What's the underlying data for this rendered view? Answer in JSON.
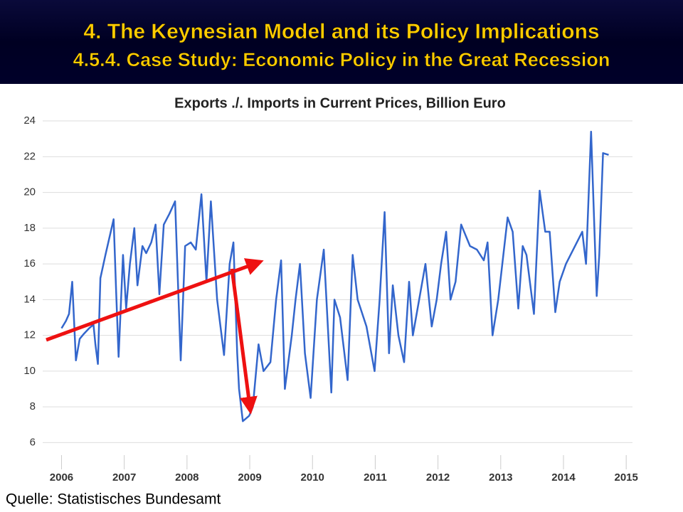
{
  "header": {
    "title": "4. The Keynesian Model and its Policy Implications",
    "subtitle": "4.5.4. Case Study: Economic Policy in the Great Recession"
  },
  "chart_data": {
    "type": "line",
    "title": "Exports ./. Imports in Current Prices, Billion Euro",
    "x": [
      2006.0,
      2006.07,
      2006.12,
      2006.17,
      2006.23,
      2006.29,
      2006.36,
      2006.44,
      2006.51,
      2006.54,
      2006.58,
      2006.62,
      2006.7,
      2006.83,
      2006.87,
      2006.91,
      2006.98,
      2007.03,
      2007.09,
      2007.16,
      2007.21,
      2007.29,
      2007.35,
      2007.43,
      2007.5,
      2007.56,
      2007.63,
      2007.72,
      2007.81,
      2007.9,
      2007.97,
      2008.06,
      2008.14,
      2008.23,
      2008.31,
      2008.38,
      2008.48,
      2008.59,
      2008.68,
      2008.74,
      2008.8,
      2008.83,
      2008.89,
      2008.99,
      2009.05,
      2009.14,
      2009.22,
      2009.33,
      2009.42,
      2009.5,
      2009.56,
      2009.67,
      2009.73,
      2009.8,
      2009.88,
      2009.97,
      2010.07,
      2010.18,
      2010.3,
      2010.35,
      2010.44,
      2010.56,
      2010.64,
      2010.72,
      2010.86,
      2010.99,
      2011.07,
      2011.15,
      2011.22,
      2011.28,
      2011.37,
      2011.46,
      2011.54,
      2011.6,
      2011.8,
      2011.9,
      2011.98,
      2012.05,
      2012.13,
      2012.2,
      2012.28,
      2012.37,
      2012.51,
      2012.62,
      2012.73,
      2012.79,
      2012.87,
      2012.96,
      2013.11,
      2013.19,
      2013.28,
      2013.35,
      2013.41,
      2013.53,
      2013.62,
      2013.71,
      2013.78,
      2013.87,
      2013.94,
      2014.04,
      2014.3,
      2014.36,
      2014.44,
      2014.53,
      2014.57,
      2014.63,
      2014.72
    ],
    "series": [
      {
        "color": "#3366cc",
        "values": [
          12.4,
          12.8,
          13.2,
          15.0,
          10.6,
          11.8,
          12.1,
          12.4,
          12.6,
          11.5,
          10.4,
          15.2,
          16.5,
          18.5,
          14.5,
          10.8,
          16.5,
          13.5,
          16.0,
          18.0,
          14.8,
          17.0,
          16.6,
          17.2,
          18.2,
          14.3,
          18.2,
          18.8,
          19.5,
          10.6,
          17.0,
          17.2,
          16.8,
          19.9,
          15.0,
          19.5,
          14.0,
          10.9,
          16.0,
          17.2,
          11.0,
          9.0,
          7.2,
          7.5,
          8.0,
          11.5,
          10.0,
          10.5,
          14.0,
          16.2,
          9.0,
          12.0,
          14.0,
          16.0,
          11.0,
          8.5,
          14.0,
          16.8,
          8.8,
          14.0,
          13.0,
          9.5,
          16.5,
          14.0,
          12.5,
          10.0,
          14.0,
          18.9,
          11.0,
          14.8,
          12.0,
          10.5,
          15.0,
          12.0,
          16.0,
          12.5,
          14.0,
          16.0,
          17.8,
          14.0,
          15.0,
          18.2,
          17.0,
          16.8,
          16.2,
          17.2,
          12.0,
          14.0,
          18.6,
          17.8,
          13.5,
          17.0,
          16.5,
          13.2,
          20.1,
          17.8,
          17.8,
          13.3,
          15.0,
          16.0,
          17.8,
          16.0,
          23.4,
          14.2,
          16.5,
          22.2,
          22.1
        ]
      }
    ],
    "xlim": [
      2005.7,
      2015.1
    ],
    "xticks": [
      2006,
      2007,
      2008,
      2009,
      2010,
      2011,
      2012,
      2013,
      2014,
      2015
    ],
    "ylim": [
      5.3,
      24.4
    ],
    "yticks": [
      6,
      8,
      10,
      12,
      14,
      16,
      18,
      20,
      22,
      24
    ],
    "grid": true,
    "source": "Quelle: Statistisches Bundesamt"
  }
}
